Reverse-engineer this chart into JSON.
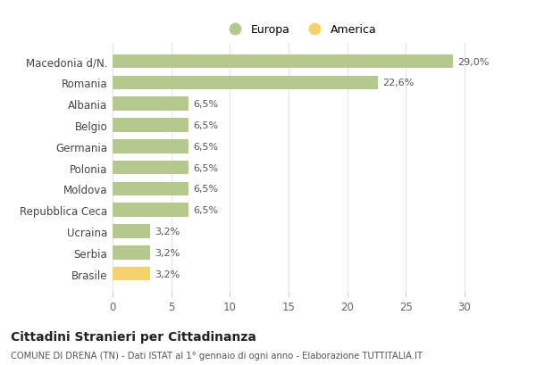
{
  "categories": [
    "Macedonia d/N.",
    "Romania",
    "Albania",
    "Belgio",
    "Germania",
    "Polonia",
    "Moldova",
    "Repubblica Ceca",
    "Ucraina",
    "Serbia",
    "Brasile"
  ],
  "values": [
    29.0,
    22.6,
    6.5,
    6.5,
    6.5,
    6.5,
    6.5,
    6.5,
    3.2,
    3.2,
    3.2
  ],
  "colors": [
    "#b5c98e",
    "#b5c98e",
    "#b5c98e",
    "#b5c98e",
    "#b5c98e",
    "#b5c98e",
    "#b5c98e",
    "#b5c98e",
    "#b5c98e",
    "#b5c98e",
    "#f5d26b"
  ],
  "labels": [
    "29,0%",
    "22,6%",
    "6,5%",
    "6,5%",
    "6,5%",
    "6,5%",
    "6,5%",
    "6,5%",
    "3,2%",
    "3,2%",
    "3,2%"
  ],
  "xlim": [
    0,
    32
  ],
  "xticks": [
    0,
    5,
    10,
    15,
    20,
    25,
    30
  ],
  "legend_europa_color": "#b5c98e",
  "legend_america_color": "#f5d26b",
  "title": "Cittadini Stranieri per Cittadinanza",
  "subtitle": "COMUNE DI DRENA (TN) - Dati ISTAT al 1° gennaio di ogni anno - Elaborazione TUTTITALIA.IT",
  "background_color": "#ffffff",
  "plot_bg_color": "#ffffff",
  "grid_color": "#e8e8e8",
  "bar_height": 0.65
}
